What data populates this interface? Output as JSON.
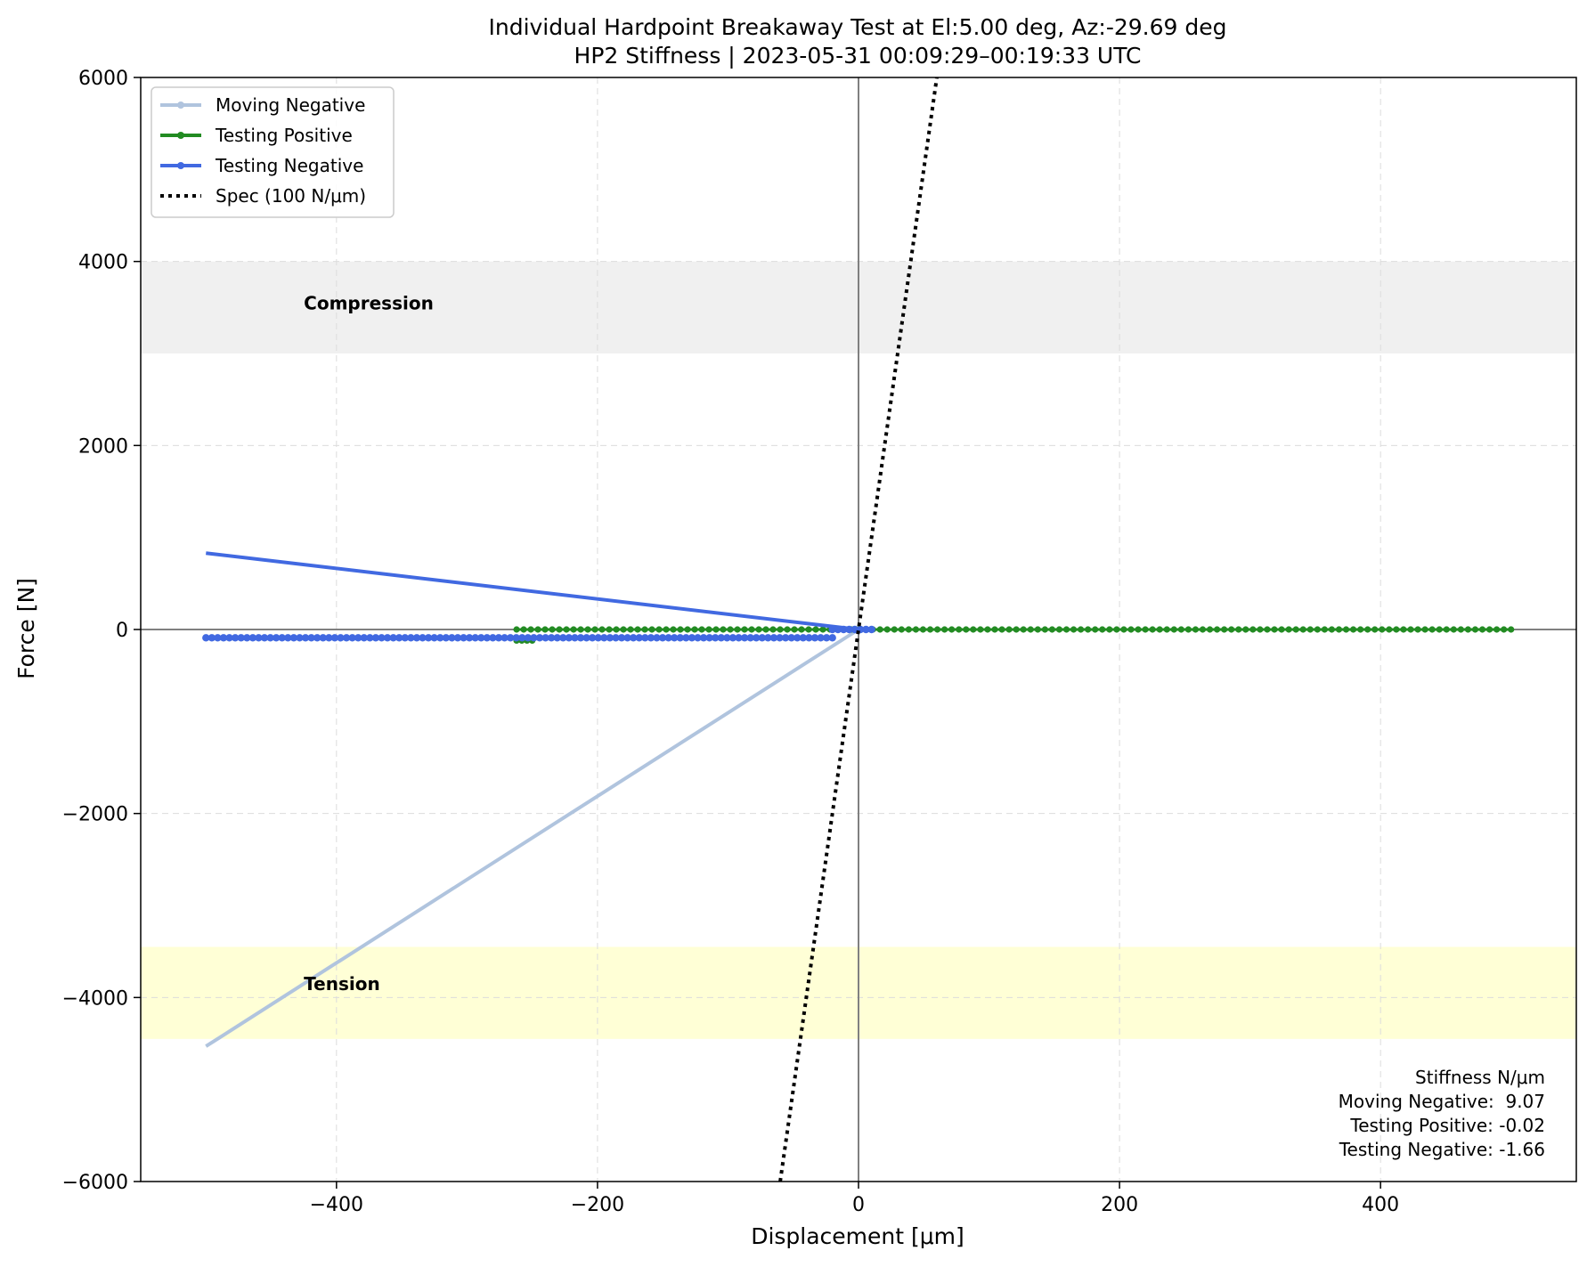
{
  "chart_data": {
    "type": "line",
    "title": "Individual Hardpoint Breakaway Test at El:5.00 deg, Az:-29.69 deg",
    "subtitle": "HP2 Stiffness | 2023-05-31 00:09:29–00:19:33 UTC",
    "xlabel": "Displacement [μm]",
    "ylabel": "Force [N]",
    "xlim": [
      -550,
      550
    ],
    "ylim": [
      -6000,
      6000
    ],
    "xticks": [
      -400,
      -200,
      0,
      200,
      400
    ],
    "yticks": [
      -6000,
      -4000,
      -2000,
      0,
      2000,
      4000,
      6000
    ],
    "xtick_labels": [
      "−400",
      "−200",
      "0",
      "200",
      "400"
    ],
    "ytick_labels": [
      "−6000",
      "−4000",
      "−2000",
      "0",
      "2000",
      "4000",
      "6000"
    ],
    "grid": true,
    "legend_position": "upper-left",
    "bands": [
      {
        "label": "Compression",
        "y0": 3000,
        "y1": 4000,
        "color": "#f0f0f0",
        "label_x": -425,
        "label_y": 3480
      },
      {
        "label": "Tension",
        "y0": -4450,
        "y1": -3450,
        "color": "#ffffd6",
        "label_x": -425,
        "label_y": -3920
      }
    ],
    "series": [
      {
        "name": "Moving Negative",
        "color": "#b0c4de",
        "marker": true,
        "x": [
          0,
          -500
        ],
        "y": [
          0,
          -4530
        ]
      },
      {
        "name": "Testing Positive",
        "color": "#228b22",
        "marker": true,
        "segments": [
          {
            "x0": -262,
            "x1": 0,
            "y": 0
          },
          {
            "x0": 0,
            "x1": 500,
            "y": 0
          }
        ],
        "extra": {
          "x0": -262,
          "x1": -250,
          "y": -120
        }
      },
      {
        "name": "Testing Negative",
        "color": "#4169e1",
        "marker": true,
        "line": {
          "x": [
            -500,
            0
          ],
          "y": [
            830,
            0
          ]
        },
        "segments": [
          {
            "x0": -500,
            "x1": -20,
            "y": -90
          },
          {
            "x0": -20,
            "x1": 10,
            "y": 0
          }
        ]
      },
      {
        "name": "Spec (100 N/μm)",
        "color": "#000000",
        "dotted": true,
        "x": [
          -60,
          60
        ],
        "y": [
          -6000,
          6000
        ]
      }
    ],
    "stats": {
      "header": "Stiffness N/μm",
      "lines": [
        "Moving Negative:  9.07",
        "Testing Positive: -0.02",
        "Testing Negative: -1.66"
      ]
    }
  }
}
